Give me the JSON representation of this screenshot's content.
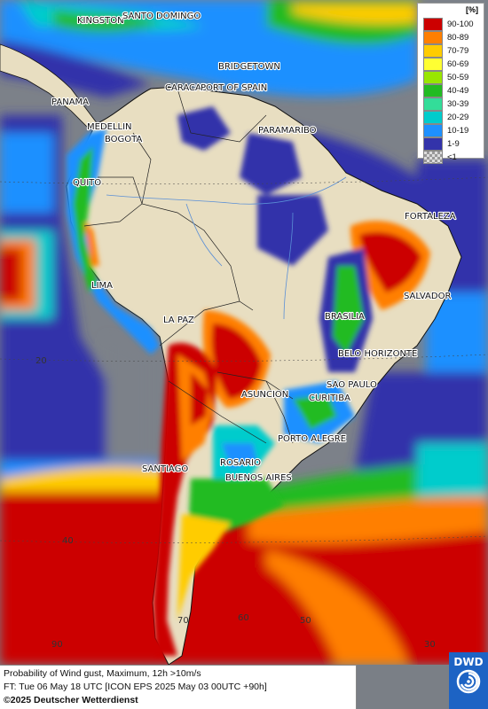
{
  "legend": {
    "unit": "[%]",
    "items": [
      {
        "label": "90-100",
        "color": "#cc0000"
      },
      {
        "label": "80-89",
        "color": "#ff7f00"
      },
      {
        "label": "70-79",
        "color": "#ffcc00"
      },
      {
        "label": "60-69",
        "color": "#ffff33"
      },
      {
        "label": "50-59",
        "color": "#99e600"
      },
      {
        "label": "40-49",
        "color": "#22bb22"
      },
      {
        "label": "30-39",
        "color": "#33dd99"
      },
      {
        "label": "20-29",
        "color": "#00cccc"
      },
      {
        "label": "10-19",
        "color": "#1e90ff"
      },
      {
        "label": "1-9",
        "color": "#3333aa"
      },
      {
        "label": "<1",
        "color": "#bbbbbb"
      }
    ]
  },
  "cities": {
    "kingston": "KINGSTON",
    "santo_domingo": "SANTO DOMINGO",
    "bridgetown": "BRIDGETOWN",
    "caracas": "CARACAS",
    "port_of_spain": "PORT OF SPAIN",
    "panama": "PANAMA",
    "medellin": "MEDELLIN",
    "bogota": "BOGOTA",
    "paramaribo": "PARAMARIBO",
    "quito": "QUITO",
    "fortaleza": "FORTALEZA",
    "lima": "LIMA",
    "salvador": "SALVADOR",
    "brasilia": "BRASILIA",
    "la_paz": "LA PAZ",
    "belo_horizonte": "BELO HORIZONTE",
    "sao_paulo": "SAO PAULO",
    "asuncion": "ASUNCION",
    "curitiba": "CURITIBA",
    "porto_alegre": "PORTO ALEGRE",
    "santiago": "SANTIAGO",
    "rosario": "ROSARIO",
    "buenos_aires": "BUENOS AIRES"
  },
  "grid_labels": {
    "lat_20": "20",
    "lat_40": "40",
    "lon_90": "90",
    "lon_70": "70",
    "lon_60": "60",
    "lon_50": "50",
    "lon_30": "30"
  },
  "footer": {
    "line1": "Probability of Wind gust, Maximum, 12h >10m/s",
    "line2": "FT: Tue 06 May 18 UTC [ICON EPS 2025 May 03 00UTC +90h]",
    "copyright": "©2025 Deutscher Wetterdienst"
  },
  "logo": {
    "text": "DWD",
    "icon": "dwd-swirl-icon"
  }
}
